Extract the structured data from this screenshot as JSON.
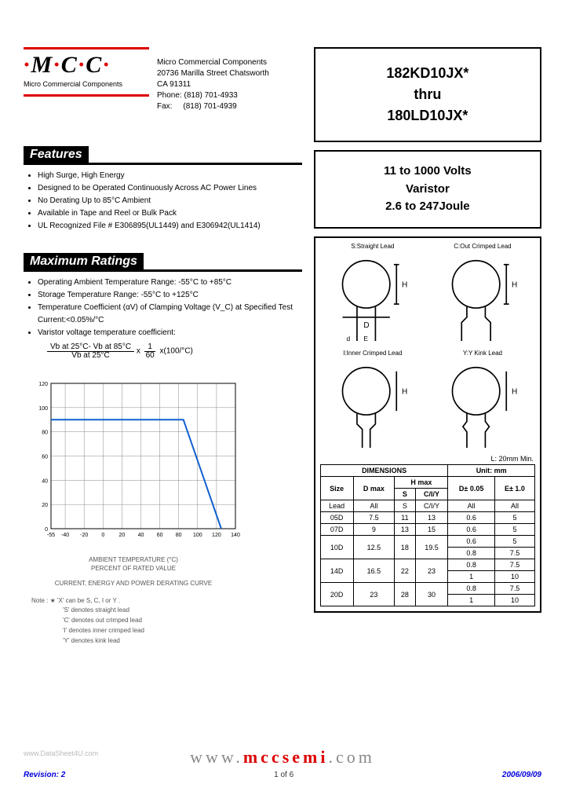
{
  "header_faded": "",
  "logo": {
    "letters": "MCC",
    "subtitle": "Micro Commercial Components"
  },
  "company": {
    "name": "Micro Commercial Components",
    "addr1": "20736 Marilla Street Chatsworth",
    "addr2": "CA 91311",
    "phone_label": "Phone:",
    "phone": "(818) 701-4933",
    "fax_label": "Fax:",
    "fax": "(818) 701-4939"
  },
  "title_box": {
    "l1": "182KD10JX*",
    "l2": "thru",
    "l3": "180LD10JX*"
  },
  "subtitle_box": {
    "l1": "11 to 1000 Volts",
    "l2": "Varistor",
    "l3": "2.6 to 247Joule"
  },
  "features": {
    "heading": "Features",
    "items": [
      "High Surge, High Energy",
      "Designed to be Operated Continuously Across AC Power Lines",
      "No Derating Up to 85°C Ambient",
      "Available in Tape and Reel or Bulk Pack",
      "UL Recognized File # E306895(UL1449) and E306942(UL1414)"
    ]
  },
  "maxratings": {
    "heading": "Maximum Ratings",
    "items": [
      "Operating Ambient Temperature Range: -55°C to +85°C",
      "Storage Temperature Range: -55°C to +125°C",
      "Temperature Coefficient (αV) of Clamping Voltage (V_C) at Specified Test Current:<0.05%/°C",
      "Varistor voltage temperature coefficient:"
    ],
    "formula_num": "Vb at 25°C- Vb at 85°C",
    "formula_den": "Vb at 25°C",
    "formula_mid": "x",
    "formula_frac2_num": "1",
    "formula_frac2_den": "60",
    "formula_tail": "x(100/°C)"
  },
  "diagrams": {
    "labels": [
      "S:Straight Lead",
      "C:Out Crimped Lead",
      "I:Inner Crimped Lead",
      "Y:Y Kink Lead"
    ],
    "dim_note": "L: 20mm Min.",
    "stroke": "#000"
  },
  "dim_table": {
    "header1": "DIMENSIONS",
    "header2": "Unit: mm",
    "cols": [
      "Size",
      "D max",
      "H max",
      "",
      "D± 0.05",
      "E± 1.0"
    ],
    "sub": [
      "Lead",
      "All",
      "S",
      "C/I/Y",
      "All",
      "All"
    ],
    "rows": [
      [
        "05D",
        "7.5",
        "11",
        "13",
        "0.6",
        "5"
      ],
      [
        "07D",
        "9",
        "13",
        "15",
        "0.6",
        "5"
      ],
      [
        "10D",
        "12.5",
        "18",
        "19.5",
        "0.6",
        "5",
        "0.8",
        "7.5"
      ],
      [
        "14D",
        "16.5",
        "22",
        "23",
        "0.8",
        "7.5",
        "1",
        "10"
      ],
      [
        "20D",
        "23",
        "28",
        "30",
        "0.8",
        "7.5",
        "1",
        "10"
      ]
    ]
  },
  "chart": {
    "x_ticks": [
      -55,
      -40,
      -20,
      0,
      20,
      40,
      60,
      80,
      100,
      120,
      140
    ],
    "y_ticks": [
      0,
      20,
      40,
      60,
      80,
      100,
      120
    ],
    "xlabel": "AMBIENT TEMPERATURE (°C)\nPERCENT OF RATED VALUE",
    "caption": "CURRENT, ENERGY AND POWER DERATING CURVE",
    "line_points": [
      [
        -55,
        90
      ],
      [
        85,
        90
      ],
      [
        125,
        0
      ]
    ],
    "line_color": "#1060d0",
    "line_width": 2,
    "grid_color": "#888",
    "axis_color": "#000",
    "xlim": [
      -55,
      140
    ],
    "ylim": [
      0,
      120
    ]
  },
  "notes": {
    "head": "Note : ★  'X' can be S, C, I or Y .",
    "lines": [
      "'S' denotes straight lead",
      "'C' denotes out crimped lead",
      "'I' denotes inner crimped lead",
      "'Y' denotes kink  lead"
    ]
  },
  "footer": {
    "url_pre": "www.",
    "url_mid": "mccsemi",
    "url_post": ".com",
    "revision": "Revision: 2",
    "page": "1 of 6",
    "date": "2006/09/09",
    "watermark": "www.DataSheet4U.com"
  }
}
